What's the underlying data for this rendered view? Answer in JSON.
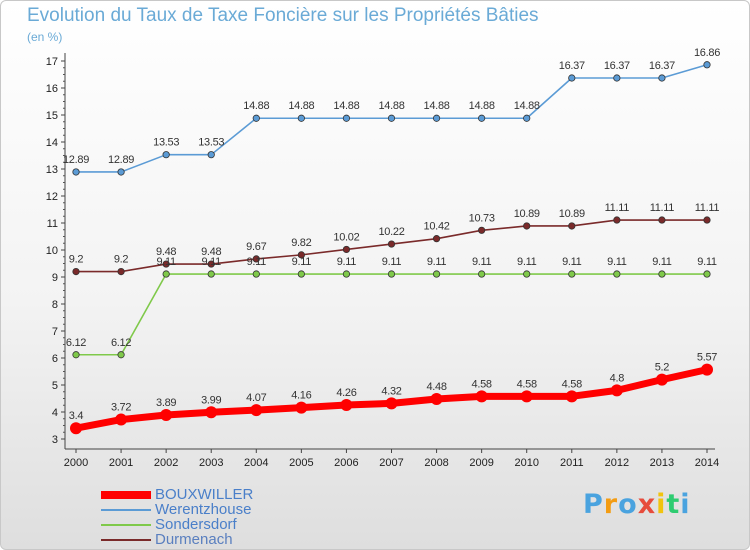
{
  "chart_data": {
    "type": "line",
    "title": "Evolution du Taux de Taxe Foncière sur les Propriétés Bâties",
    "subtitle": "(en %)",
    "x": [
      "2000",
      "2001",
      "2002",
      "2003",
      "2004",
      "2005",
      "2006",
      "2007",
      "2008",
      "2009",
      "2010",
      "2011",
      "2012",
      "2013",
      "2014"
    ],
    "ylim": [
      3,
      17
    ],
    "yticks": [
      "3",
      "4",
      "5",
      "6",
      "7",
      "8",
      "9",
      "10",
      "11",
      "12",
      "13",
      "14",
      "15",
      "16",
      "17"
    ],
    "grid": false,
    "legend_position": "bottom-left",
    "series": [
      {
        "name": "BOUXWILLER",
        "color": "#ff0000",
        "values": [
          3.4,
          3.72,
          3.89,
          3.99,
          4.07,
          4.16,
          4.26,
          4.32,
          4.48,
          4.58,
          4.58,
          4.58,
          4.8,
          5.2,
          5.57
        ],
        "labels": [
          "3.4",
          "3.72",
          "3.89",
          "3.99",
          "4.07",
          "4.16",
          "4.26",
          "4.32",
          "4.48",
          "4.58",
          "4.58",
          "4.58",
          "4.8",
          "5.2",
          "5.57"
        ]
      },
      {
        "name": "Werentzhouse",
        "color": "#5b9bd5",
        "values": [
          12.89,
          12.89,
          13.53,
          13.53,
          14.88,
          14.88,
          14.88,
          14.88,
          14.88,
          14.88,
          14.88,
          16.37,
          16.37,
          16.37,
          16.86
        ],
        "labels": [
          "12.89",
          "12.89",
          "13.53",
          "13.53",
          "14.88",
          "14.88",
          "14.88",
          "14.88",
          "14.88",
          "14.88",
          "14.88",
          "16.37",
          "16.37",
          "16.37",
          "16.86"
        ]
      },
      {
        "name": "Sondersdorf",
        "color": "#7fc94a",
        "values": [
          6.12,
          6.12,
          9.11,
          9.11,
          9.11,
          9.11,
          9.11,
          9.11,
          9.11,
          9.11,
          9.11,
          9.11,
          9.11,
          9.11,
          9.11
        ],
        "labels": [
          "6.12",
          "6.12",
          "9.11",
          "9.11",
          "9.11",
          "9.11",
          "9.11",
          "9.11",
          "9.11",
          "9.11",
          "9.11",
          "9.11",
          "9.11",
          "9.11",
          "9.11"
        ]
      },
      {
        "name": "Durmenach",
        "color": "#7a2a2a",
        "values": [
          9.2,
          9.2,
          9.48,
          9.48,
          9.67,
          9.82,
          10.02,
          10.22,
          10.42,
          10.73,
          10.89,
          10.89,
          11.11,
          11.11,
          11.11
        ],
        "labels": [
          "9.2",
          "9.2",
          "9.48",
          "9.48",
          "9.67",
          "9.82",
          "10.02",
          "10.22",
          "10.42",
          "10.73",
          "10.89",
          "10.89",
          "11.11",
          "11.11",
          "11.11"
        ]
      }
    ]
  },
  "brand": {
    "letters": [
      "P",
      "r",
      "o",
      "x",
      "i",
      "t",
      "i"
    ],
    "colors": [
      "#4aa3df",
      "#f39c12",
      "#4aa3df",
      "#e74c3c",
      "#f1c40f",
      "#2ecc71",
      "#4aa3df"
    ]
  }
}
